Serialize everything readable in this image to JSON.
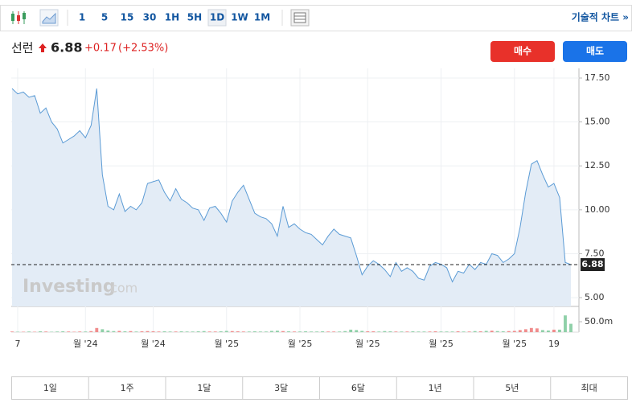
{
  "toolbar": {
    "intervals": [
      "1",
      "5",
      "15",
      "30",
      "1H",
      "5H",
      "1D",
      "1W",
      "1M"
    ],
    "technical": "기술적 차트 »"
  },
  "header": {
    "name": "선런",
    "price": "6.88",
    "change": "+0.17",
    "change_pct": "(+2.53%)",
    "buy": "매수",
    "sell": "매도"
  },
  "watermark": [
    "Investing",
    ".com"
  ],
  "ranges": [
    "1일",
    "1주",
    "1달",
    "3달",
    "6달",
    "1년",
    "5년",
    "최대"
  ],
  "chart_data": {
    "type": "area",
    "color": "#5b9bd5",
    "fill": "#e3ecf6",
    "categories": [
      null,
      "7",
      null,
      null,
      null,
      null,
      null,
      null,
      null,
      null,
      null,
      null,
      null,
      "월 '24",
      null,
      null,
      null,
      null,
      null,
      null,
      null,
      null,
      null,
      null,
      null,
      "월 '24",
      null,
      null,
      null,
      null,
      null,
      null,
      null,
      null,
      null,
      null,
      null,
      null,
      "월 '25",
      null,
      null,
      null,
      null,
      null,
      null,
      null,
      null,
      null,
      null,
      null,
      null,
      "월 '25",
      null,
      null,
      null,
      null,
      null,
      null,
      null,
      null,
      null,
      null,
      null,
      "월 '25",
      null,
      null,
      null,
      null,
      null,
      null,
      null,
      null,
      null,
      null,
      null,
      null,
      "월 '25",
      null,
      null,
      null,
      null,
      null,
      null,
      null,
      null,
      null,
      null,
      null,
      null,
      "월 '25",
      null,
      null,
      null,
      null,
      null,
      null,
      "19",
      null,
      null,
      null
    ],
    "values": [
      16.9,
      16.6,
      16.7,
      16.4,
      16.5,
      15.5,
      15.8,
      15.0,
      14.6,
      13.8,
      14.0,
      14.2,
      14.5,
      14.1,
      14.8,
      16.9,
      12.0,
      10.2,
      10.0,
      10.9,
      9.9,
      10.2,
      10.0,
      10.4,
      11.5,
      11.6,
      11.7,
      11.0,
      10.5,
      11.2,
      10.6,
      10.4,
      10.1,
      10.0,
      9.4,
      10.1,
      10.2,
      9.8,
      9.3,
      10.5,
      11.0,
      11.4,
      10.6,
      9.8,
      9.6,
      9.5,
      9.2,
      8.5,
      10.2,
      9.0,
      9.2,
      8.9,
      8.7,
      8.6,
      8.3,
      8.0,
      8.5,
      8.9,
      8.6,
      8.5,
      8.4,
      7.4,
      6.3,
      6.8,
      7.1,
      6.9,
      6.6,
      6.2,
      7.0,
      6.5,
      6.7,
      6.5,
      6.1,
      6.0,
      6.8,
      7.0,
      6.9,
      6.7,
      5.9,
      6.5,
      6.4,
      6.9,
      6.6,
      7.0,
      6.9,
      7.5,
      7.4,
      7.0,
      7.2,
      7.5,
      9.0,
      11.0,
      12.6,
      12.8,
      12.0,
      11.3,
      11.5,
      10.7,
      7.0,
      6.88
    ],
    "volume": [
      3,
      2,
      2,
      3,
      2,
      4,
      3,
      2,
      3,
      4,
      3,
      2,
      3,
      3,
      5,
      20,
      14,
      8,
      5,
      6,
      4,
      5,
      3,
      4,
      5,
      4,
      3,
      4,
      3,
      3,
      4,
      3,
      3,
      4,
      5,
      3,
      3,
      4,
      6,
      5,
      4,
      3,
      3,
      4,
      3,
      3,
      6,
      7,
      5,
      4,
      3,
      3,
      4,
      3,
      3,
      4,
      3,
      3,
      3,
      5,
      12,
      10,
      6,
      4,
      4,
      3,
      5,
      4,
      3,
      3,
      3,
      4,
      3,
      3,
      3,
      4,
      3,
      3,
      3,
      4,
      3,
      3,
      5,
      4,
      6,
      7,
      5,
      4,
      5,
      6,
      10,
      14,
      20,
      18,
      10,
      8,
      12,
      12,
      80,
      40
    ],
    "up_color": "#f08c8c",
    "down_color": "#8fd0a8",
    "ylim": [
      4.5,
      18.05
    ],
    "yticks": [
      {
        "value": 17.5,
        "label": "17.50"
      },
      {
        "value": 15,
        "label": "15.00"
      },
      {
        "value": 12.5,
        "label": "12.50"
      },
      {
        "value": 10,
        "label": "10.00"
      },
      {
        "value": 7.5,
        "label": "7.50"
      },
      {
        "value": 5,
        "label": "5.00"
      }
    ],
    "volume_ylim": [
      0,
      123
    ],
    "volume_ticks": [
      {
        "value": 50,
        "label": "50.0m"
      }
    ],
    "grid": true
  }
}
